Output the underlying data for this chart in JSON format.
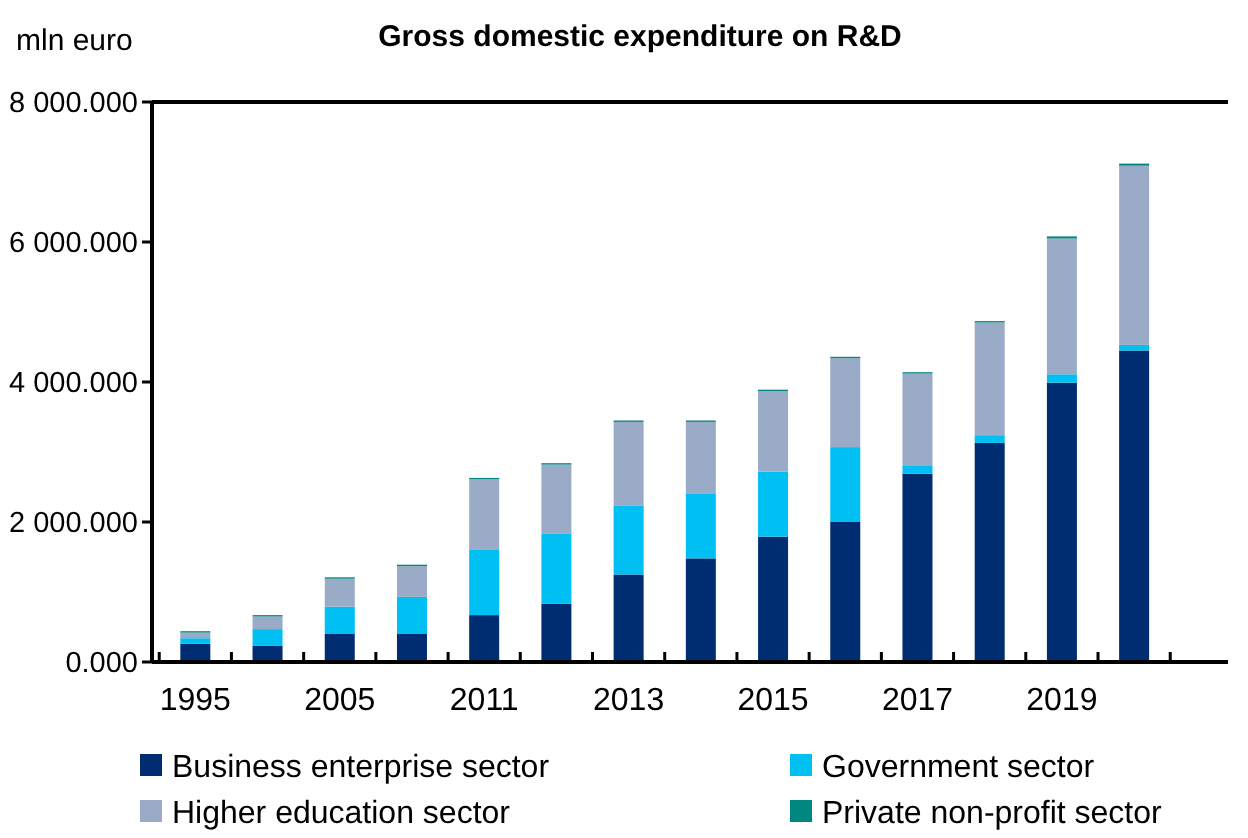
{
  "chart_data": {
    "type": "bar",
    "title": "Gross domestic expenditure on R&D",
    "ylabel": "mln euro",
    "stacked": true,
    "legend": "bottom",
    "grid": false,
    "categories": [
      "1995",
      null,
      "2005",
      null,
      "2011",
      null,
      "2013",
      null,
      "2015",
      null,
      "2017",
      null,
      "2019",
      null
    ],
    "ylim": [
      0,
      8000
    ],
    "yticks": [
      {
        "value": 0,
        "label": "0.000"
      },
      {
        "value": 2000,
        "label": "2 000.000"
      },
      {
        "value": 4000,
        "label": "4 000.000"
      },
      {
        "value": 6000,
        "label": "6 000.000"
      },
      {
        "value": 8000,
        "label": "8 000.000"
      }
    ],
    "series": [
      {
        "name": "Business enterprise sector",
        "color": "#002d72",
        "values": [
          260,
          230,
          400,
          400,
          670,
          830,
          1250,
          1480,
          1790,
          2000,
          2690,
          3130,
          3990,
          4450
        ]
      },
      {
        "name": "Government sector",
        "color": "#00bff3",
        "values": [
          80,
          240,
          390,
          530,
          940,
          1000,
          980,
          930,
          930,
          1070,
          110,
          110,
          120,
          80
        ]
      },
      {
        "name": "Higher education sector",
        "color": "#9aabc8",
        "values": [
          80,
          180,
          400,
          440,
          1000,
          990,
          1200,
          1020,
          1150,
          1270,
          1320,
          1610,
          1940,
          2560
        ]
      },
      {
        "name": "Private non-profit sector",
        "color": "#00877f",
        "values": [
          20,
          20,
          20,
          20,
          20,
          20,
          20,
          20,
          20,
          20,
          20,
          20,
          30,
          30
        ]
      }
    ]
  }
}
